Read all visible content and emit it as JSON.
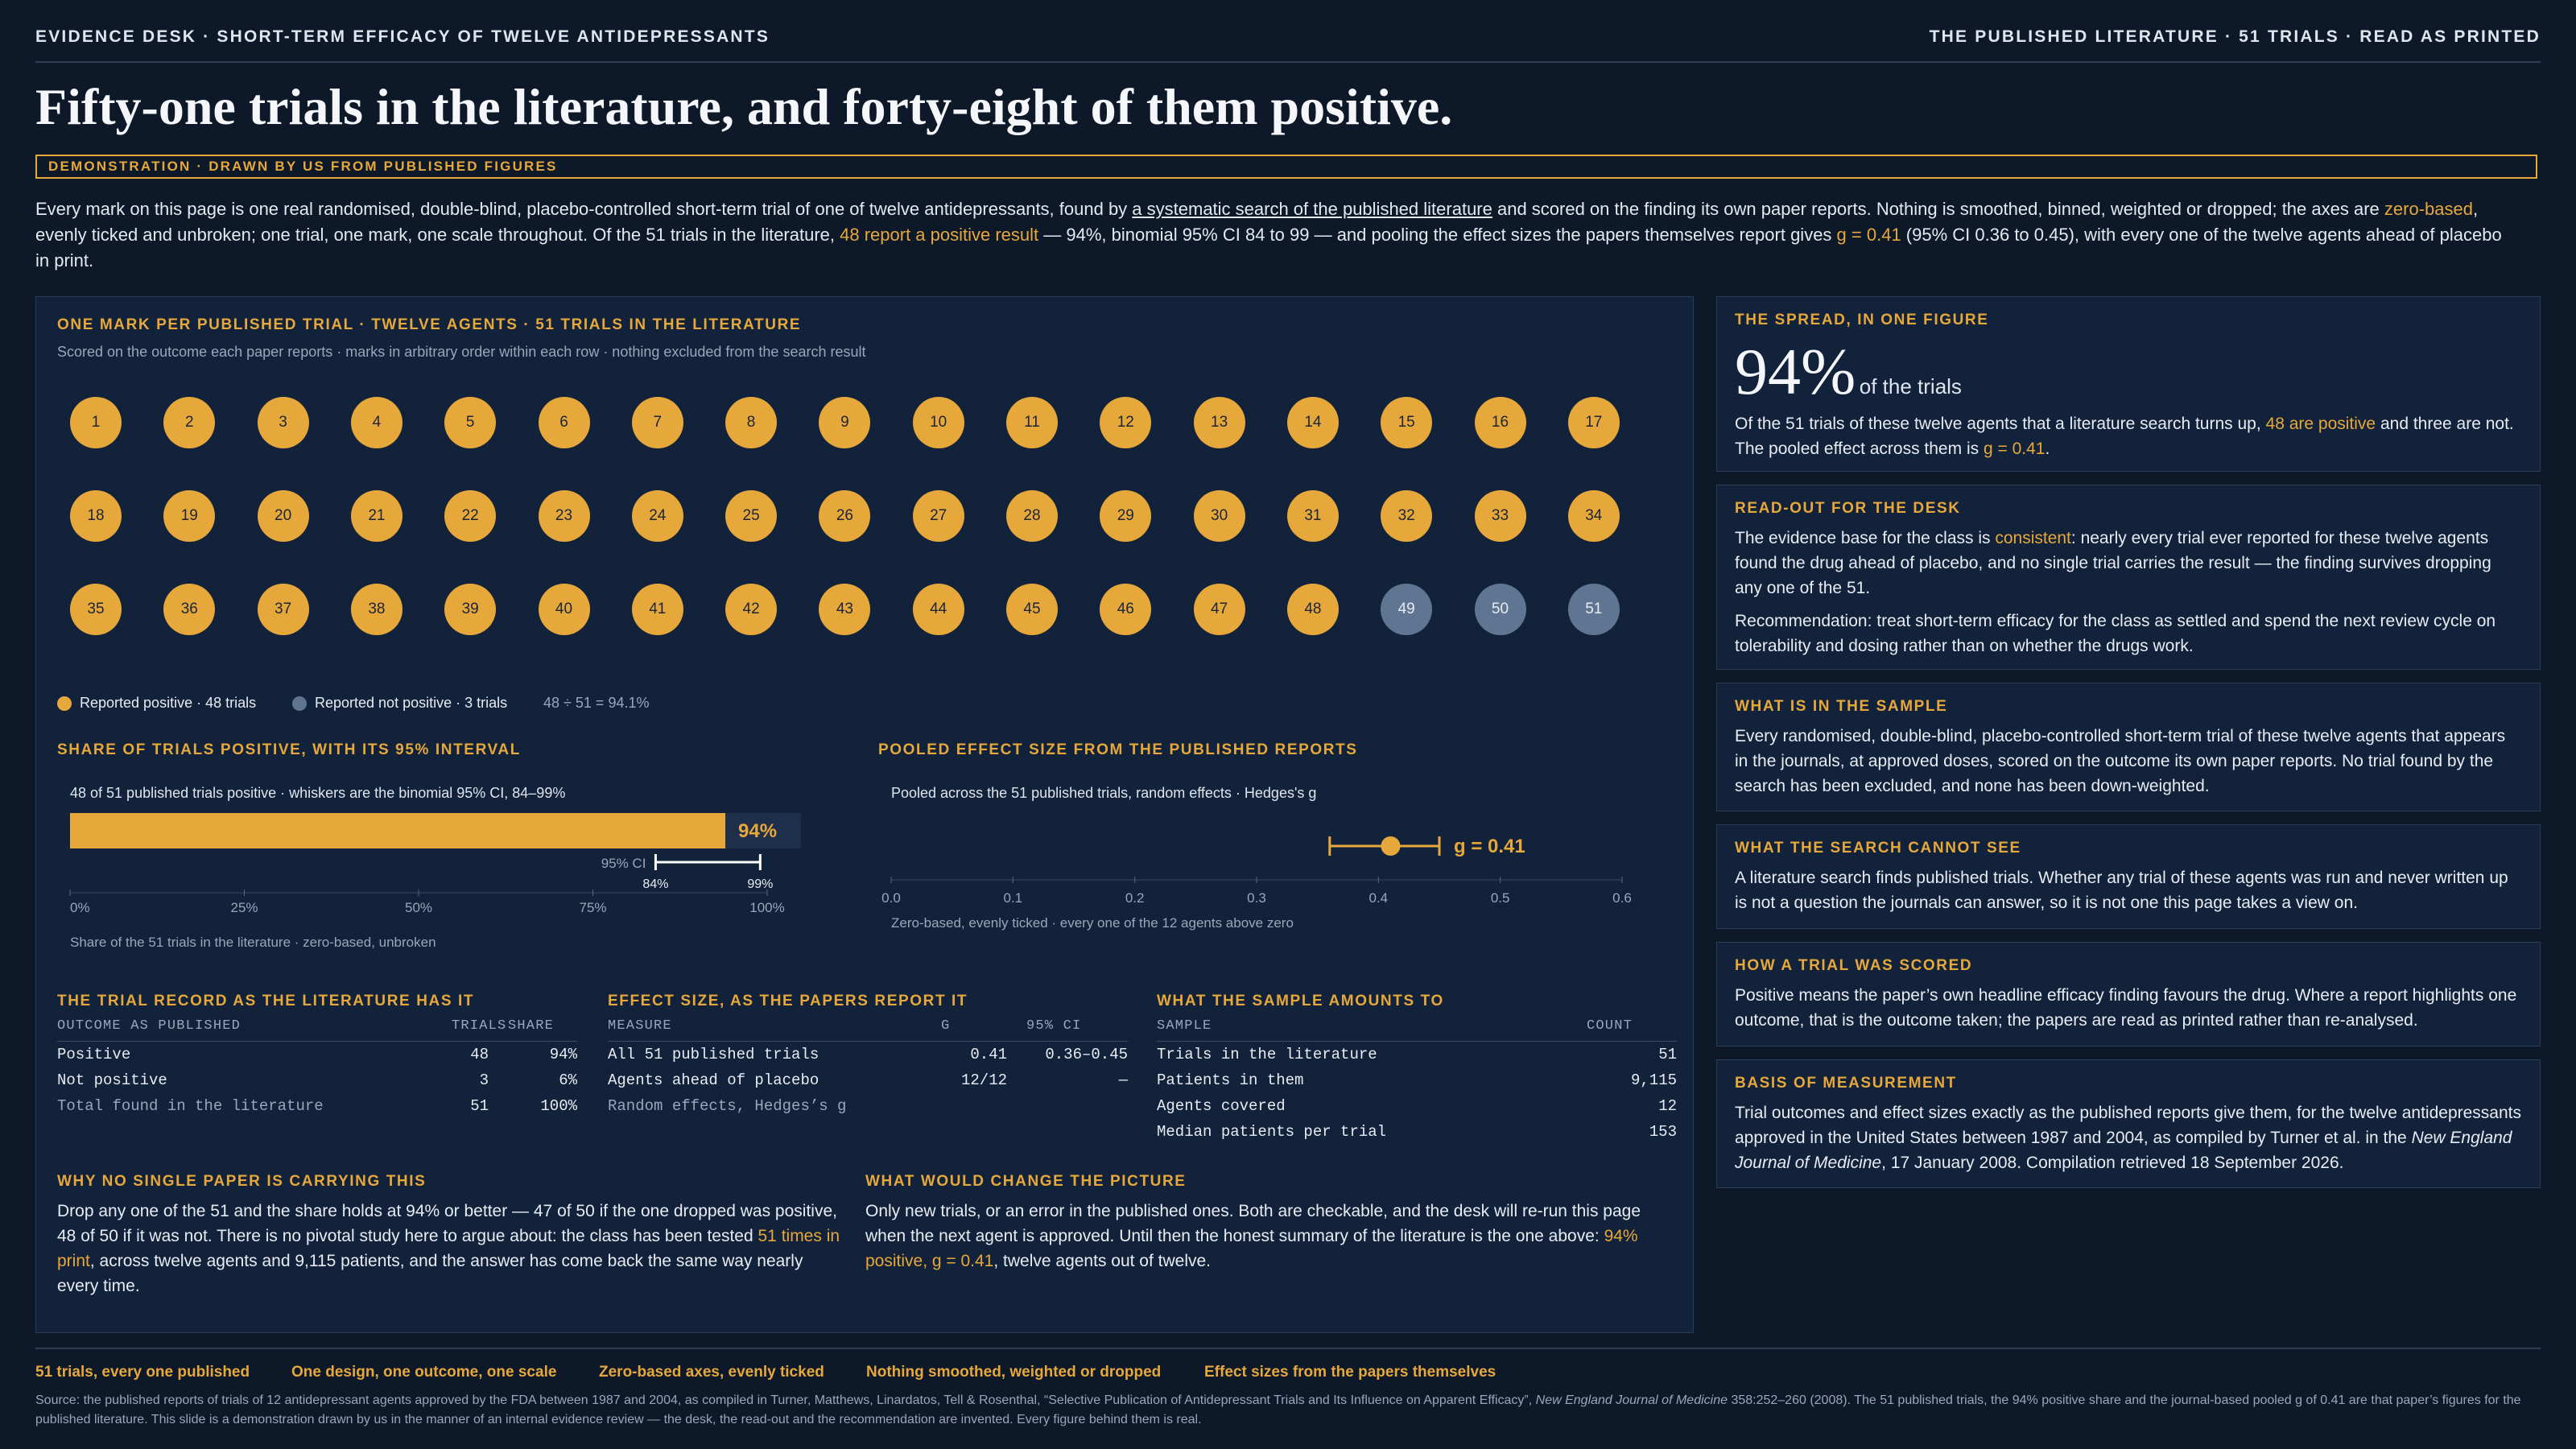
{
  "header": {
    "left": "EVIDENCE DESK · SHORT-TERM EFFICACY OF TWELVE ANTIDEPRESSANTS",
    "right": "THE PUBLISHED LITERATURE · 51 TRIALS · READ AS PRINTED"
  },
  "title": "Fifty-one trials in the literature, and forty-eight of them positive.",
  "demo_banner": "DEMONSTRATION · DRAWN BY US FROM PUBLISHED FIGURES",
  "intro": {
    "p1": "Every mark on this page is one real randomised, double-blind, placebo-controlled short-term trial of one of twelve antidepressants, found by ",
    "link": "a systematic search of the published literature",
    "p2": " and scored on the finding its own paper reports. Nothing is smoothed, binned, weighted or dropped; the axes are ",
    "hl1": "zero-based",
    "p3": ", evenly ticked and unbroken; one trial, one mark, one scale throughout. Of the 51 trials in the literature, ",
    "hl2": "48 report a positive result",
    "p4": " — 94%, binomial 95% CI 84 to 99 — and pooling the effect sizes the papers themselves report gives ",
    "hl3": "g = 0.41",
    "p5": " (95% CI 0.36 to 0.45), with every one of the twelve agents ahead of placebo in print."
  },
  "main_panel": {
    "title": "ONE MARK PER PUBLISHED TRIAL · TWELVE AGENTS · 51 TRIALS IN THE LITERATURE",
    "subtitle": "Scored on the outcome each paper reports · marks in arbitrary order within each row · nothing excluded from the search result",
    "legend": {
      "positive": "Reported positive · 48 trials",
      "negative": "Reported not positive · 3 trials",
      "ratio": "48 ÷ 51 = 94.1%"
    }
  },
  "colors": {
    "positive": "#e7a83b",
    "negative": "#5f7591",
    "background": "#0d1829",
    "panel": "#12223a"
  },
  "chart_data": [
    {
      "type": "scatter",
      "title": "ONE MARK PER PUBLISHED TRIAL · TWELVE AGENTS · 51 TRIALS IN THE LITERATURE",
      "trials": [
        1,
        2,
        3,
        4,
        5,
        6,
        7,
        8,
        9,
        10,
        11,
        12,
        13,
        14,
        15,
        16,
        17,
        18,
        19,
        20,
        21,
        22,
        23,
        24,
        25,
        26,
        27,
        28,
        29,
        30,
        31,
        32,
        33,
        34,
        35,
        36,
        37,
        38,
        39,
        40,
        41,
        42,
        43,
        44,
        45,
        46,
        47,
        48,
        49,
        50,
        51
      ],
      "not_positive": [
        49,
        50,
        51
      ],
      "per_row": 17
    },
    {
      "type": "bar",
      "title": "SHARE OF TRIALS POSITIVE, WITH ITS 95% INTERVAL",
      "subtitle": "48 of 51 published trials positive · whiskers are the binomial 95% CI, 84–99%",
      "value": 94,
      "value_label": "94%",
      "ci": [
        84,
        99
      ],
      "ci_label": "95% CI",
      "ci_low_label": "84%",
      "ci_high_label": "99%",
      "xlim": [
        0,
        100
      ],
      "ticks": [
        "0%",
        "25%",
        "50%",
        "75%",
        "100%"
      ],
      "tick_values": [
        0,
        25,
        50,
        75,
        100
      ],
      "xlabel": "Share of the 51 trials in the literature · zero-based, unbroken"
    },
    {
      "type": "scatter",
      "title": "POOLED EFFECT SIZE FROM THE PUBLISHED REPORTS",
      "subtitle": "Pooled across the 51 published trials, random effects · Hedges's g",
      "value": 0.41,
      "value_label": "g = 0.41",
      "ci": [
        0.36,
        0.45
      ],
      "xlim": [
        0,
        0.6
      ],
      "ticks": [
        "0.0",
        "0.1",
        "0.2",
        "0.3",
        "0.4",
        "0.5",
        "0.6"
      ],
      "tick_values": [
        0,
        0.1,
        0.2,
        0.3,
        0.4,
        0.5,
        0.6
      ],
      "xlabel": "Zero-based, evenly ticked · every one of the 12 agents above zero"
    }
  ],
  "tables": {
    "record": {
      "title": "THE TRIAL RECORD AS THE LITERATURE HAS IT",
      "headers": [
        "OUTCOME AS PUBLISHED",
        "TRIALS",
        "SHARE"
      ],
      "rows": [
        [
          "Positive",
          "48",
          "94%"
        ],
        [
          "Not positive",
          "3",
          "6%"
        ],
        [
          "Total found in the literature",
          "51",
          "100%"
        ]
      ]
    },
    "effect": {
      "title": "EFFECT SIZE, AS THE PAPERS REPORT IT",
      "headers": [
        "MEASURE",
        "G",
        "95% CI"
      ],
      "rows": [
        [
          "All 51 published trials",
          "0.41",
          "0.36–0.45"
        ],
        [
          "Agents ahead of placebo",
          "12/12",
          "—"
        ]
      ],
      "note": "Random effects, Hedges’s g"
    },
    "sample": {
      "title": "WHAT THE SAMPLE AMOUNTS TO",
      "headers": [
        "SAMPLE",
        "COUNT"
      ],
      "rows": [
        [
          "Trials in the literature",
          "51"
        ],
        [
          "Patients in them",
          "9,115"
        ],
        [
          "Agents covered",
          "12"
        ],
        [
          "Median patients per trial",
          "153"
        ]
      ]
    }
  },
  "notes": {
    "why": {
      "title": "WHY NO SINGLE PAPER IS CARRYING THIS",
      "p1": "Drop any one of the 51 and the share holds at 94% or better — 47 of 50 if the one dropped was positive, 48 of 50 if it was not. There is no pivotal study here to argue about: the class has been tested ",
      "hl": "51 times in print",
      "p2": ", across twelve agents and 9,115 patients, and the answer has come back the same way nearly every time."
    },
    "change": {
      "title": "WHAT WOULD CHANGE THE PICTURE",
      "p1": "Only new trials, or an error in the published ones. Both are checkable, and the desk will re-run this page when the next agent is approved. Until then the honest summary of the literature is the one above: ",
      "hl": "94% positive, g = 0.41",
      "p2": ", twelve agents out of twelve."
    }
  },
  "side": {
    "spread": {
      "title": "THE SPREAD, IN ONE FIGURE",
      "big": "94%",
      "big_suffix": "of the trials",
      "p1": "Of the 51 trials of these twelve agents that a literature search turns up, ",
      "hl1": "48 are positive",
      "p2": " and three are not. The pooled effect across them is ",
      "hl2": "g = 0.41",
      "p3": "."
    },
    "readout": {
      "title": "READ-OUT FOR THE DESK",
      "p1": "The evidence base for the class is ",
      "hl": "consistent",
      "p2": ": nearly every trial ever reported for these twelve agents found the drug ahead of placebo, and no single trial carries the result — the finding survives dropping any one of the 51.",
      "p3": "Recommendation: treat short-term efficacy for the class as settled and spend the next review cycle on tolerability and dosing rather than on whether the drugs work."
    },
    "sample": {
      "title": "WHAT IS IN THE SAMPLE",
      "text": "Every randomised, double-blind, placebo-controlled short-term trial of these twelve agents that appears in the journals, at approved doses, scored on the outcome its own paper reports. No trial found by the search has been excluded, and none has been down-weighted."
    },
    "cannot": {
      "title": "WHAT THE SEARCH CANNOT SEE",
      "text": "A literature search finds published trials. Whether any trial of these agents was run and never written up is not a question the journals can answer, so it is not one this page takes a view on."
    },
    "scored": {
      "title": "HOW A TRIAL WAS SCORED",
      "text": "Positive means the paper’s own headline efficacy finding favours the drug. Where a report highlights one outcome, that is the outcome taken; the papers are read as printed rather than re-analysed."
    },
    "basis": {
      "title": "BASIS OF MEASUREMENT",
      "p1": "Trial outcomes and effect sizes exactly as the published reports give them, for the twelve antidepressants approved in the United States between 1987 and 2004, as compiled by Turner et al. in the ",
      "journal": "New England Journal of Medicine",
      "p2": ", 17 January 2008. Compilation retrieved 18 September 2026."
    }
  },
  "footer": {
    "items": [
      "51 trials, every one published",
      "One design, one outcome, one scale",
      "Zero-based axes, evenly ticked",
      "Nothing smoothed, weighted or dropped",
      "Effect sizes from the papers themselves"
    ],
    "source_p1": "Source: the published reports of trials of 12 antidepressant agents approved by the FDA between 1987 and 2004, as compiled in Turner, Matthews, Linardatos, Tell & Rosenthal, “Selective Publication of Antidepressant Trials and Its Influence on Apparent Efficacy”, ",
    "source_journal": "New England Journal of Medicine",
    "source_p2": " 358:252–260 (2008). The 51 published trials, the 94% positive share and the journal-based pooled g of 0.41 are that paper’s figures for the published literature. This slide is a demonstration drawn by us in the manner of an internal evidence review — the desk, the read-out and the recommendation are invented. Every figure behind them is real."
  }
}
